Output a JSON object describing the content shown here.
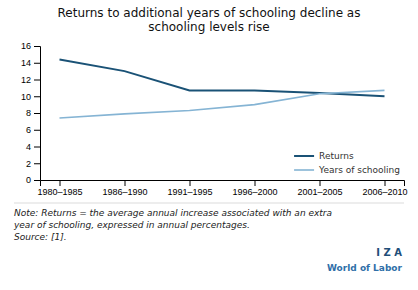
{
  "chart_data": {
    "type": "line",
    "title": "Returns to additional years of schooling decline as\nschooling levels rise",
    "categories": [
      "1980–1985",
      "1986–1990",
      "1991–1995",
      "1996–2000",
      "2001–2005",
      "2006–2010"
    ],
    "series": [
      {
        "name": "Returns",
        "color": "#1a5276",
        "values": [
          14.4,
          13.0,
          10.7,
          10.7,
          10.4,
          10.0
        ]
      },
      {
        "name": "Years of schooling",
        "color": "#85b4d4",
        "values": [
          7.4,
          7.9,
          8.3,
          9.0,
          10.3,
          10.7
        ]
      }
    ],
    "ylim": [
      0,
      16
    ],
    "yticks": [
      0,
      2,
      4,
      6,
      8,
      10,
      12,
      14,
      16
    ],
    "grid": false,
    "legend": "lower right",
    "annotations": [
      "Note: Returns = the average annual increase associated with an extra",
      "year of schooling, expressed in annual percentages.",
      "Source: [1].",
      "I Z A",
      "World of Labor"
    ]
  }
}
